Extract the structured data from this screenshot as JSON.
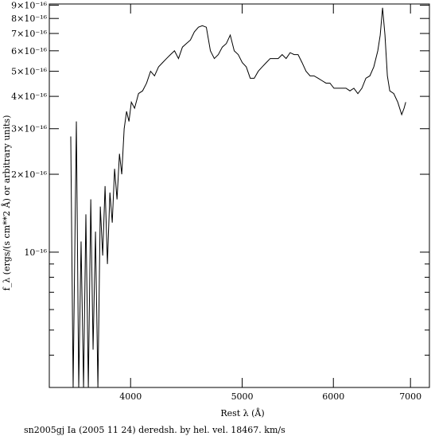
{
  "chart_data": {
    "type": "line",
    "title": "sn2005gj Ia (2005 11 24) deredsh. by hel. vel. 18467. km/s",
    "xlabel": "Rest λ (Å)",
    "ylabel": "f_λ (ergs/(s cm**2 Å) or arbitrary units)",
    "xscale": "log",
    "yscale": "log",
    "xlim": [
      3400,
      7270
    ],
    "ylim": [
      3e-17,
      9.1e-16
    ],
    "xticks": [
      4000,
      5000,
      6000,
      7000
    ],
    "yticks": [
      {
        "value": 1e-16,
        "label": "10⁻¹⁶"
      },
      {
        "value": 2e-16,
        "label": "2×10⁻¹⁶"
      },
      {
        "value": 3e-16,
        "label": "3×10⁻¹⁶"
      },
      {
        "value": 4e-16,
        "label": "4×10⁻¹⁶"
      },
      {
        "value": 5e-16,
        "label": "5×10⁻¹⁶"
      },
      {
        "value": 6e-16,
        "label": "6×10⁻¹⁶"
      },
      {
        "value": 7e-16,
        "label": "7×10⁻¹⁶"
      },
      {
        "value": 8e-16,
        "label": "8×10⁻¹⁶"
      },
      {
        "value": 9e-16,
        "label": "9×10⁻¹⁶"
      }
    ],
    "yticks_minor": [
      4e-17,
      5e-17,
      6e-17,
      7e-17,
      8e-17,
      9e-17
    ],
    "color": "#000000",
    "x": [
      3549,
      3566,
      3589,
      3606,
      3623,
      3641,
      3658,
      3676,
      3694,
      3711,
      3729,
      3747,
      3765,
      3783,
      3801,
      3819,
      3838,
      3856,
      3874,
      3893,
      3912,
      3930,
      3949,
      3968,
      3987,
      4006,
      4032,
      4064,
      4097,
      4130,
      4163,
      4196,
      4230,
      4264,
      4298,
      4332,
      4367,
      4402,
      4437,
      4472,
      4508,
      4544,
      4581,
      4617,
      4654,
      4692,
      4729,
      4767,
      4805,
      4844,
      4882,
      4921,
      4961,
      5001,
      5041,
      5081,
      5122,
      5163,
      5204,
      5246,
      5288,
      5330,
      5373,
      5416,
      5459,
      5503,
      5547,
      5591,
      5636,
      5681,
      5727,
      5772,
      5819,
      5865,
      5912,
      5959,
      6007,
      6055,
      6104,
      6153,
      6202,
      6251,
      6301,
      6352,
      6403,
      6454,
      6505,
      6557,
      6589,
      6620,
      6652,
      6684,
      6716,
      6770,
      6824,
      6878,
      6911,
      6934
    ],
    "values": [
      2.8e-16,
      3e-17,
      3.2e-16,
      3e-17,
      1.1e-16,
      3e-17,
      1.4e-16,
      3e-17,
      1.6e-16,
      4.2e-17,
      1.2e-16,
      3e-17,
      1.5e-16,
      9.7e-17,
      1.8e-16,
      9e-17,
      1.7e-16,
      1.3e-16,
      2.1e-16,
      1.6e-16,
      2.4e-16,
      2e-16,
      3e-16,
      3.5e-16,
      3.2e-16,
      3.8e-16,
      3.6e-16,
      4.1e-16,
      4.2e-16,
      4.5e-16,
      5e-16,
      4.8e-16,
      5.2e-16,
      5.4e-16,
      5.6e-16,
      5.8e-16,
      6e-16,
      5.6e-16,
      6.2e-16,
      6.4e-16,
      6.6e-16,
      7.1e-16,
      7.4e-16,
      7.5e-16,
      7.4e-16,
      6e-16,
      5.6e-16,
      5.8e-16,
      6.2e-16,
      6.4e-16,
      6.9e-16,
      6e-16,
      5.8e-16,
      5.4e-16,
      5.2e-16,
      4.7e-16,
      4.7e-16,
      5e-16,
      5.2e-16,
      5.4e-16,
      5.6e-16,
      5.6e-16,
      5.6e-16,
      5.8e-16,
      5.6e-16,
      5.9e-16,
      5.8e-16,
      5.8e-16,
      5.4e-16,
      5e-16,
      4.8e-16,
      4.8e-16,
      4.7e-16,
      4.6e-16,
      4.5e-16,
      4.5e-16,
      4.3e-16,
      4.3e-16,
      4.3e-16,
      4.3e-16,
      4.2e-16,
      4.3e-16,
      4.1e-16,
      4.3e-16,
      4.7e-16,
      4.8e-16,
      5.2e-16,
      6e-16,
      6.9e-16,
      8.8e-16,
      6.9e-16,
      4.8e-16,
      4.2e-16,
      4.1e-16,
      3.8e-16,
      3.4e-16,
      3.6e-16,
      3.8e-16
    ]
  }
}
